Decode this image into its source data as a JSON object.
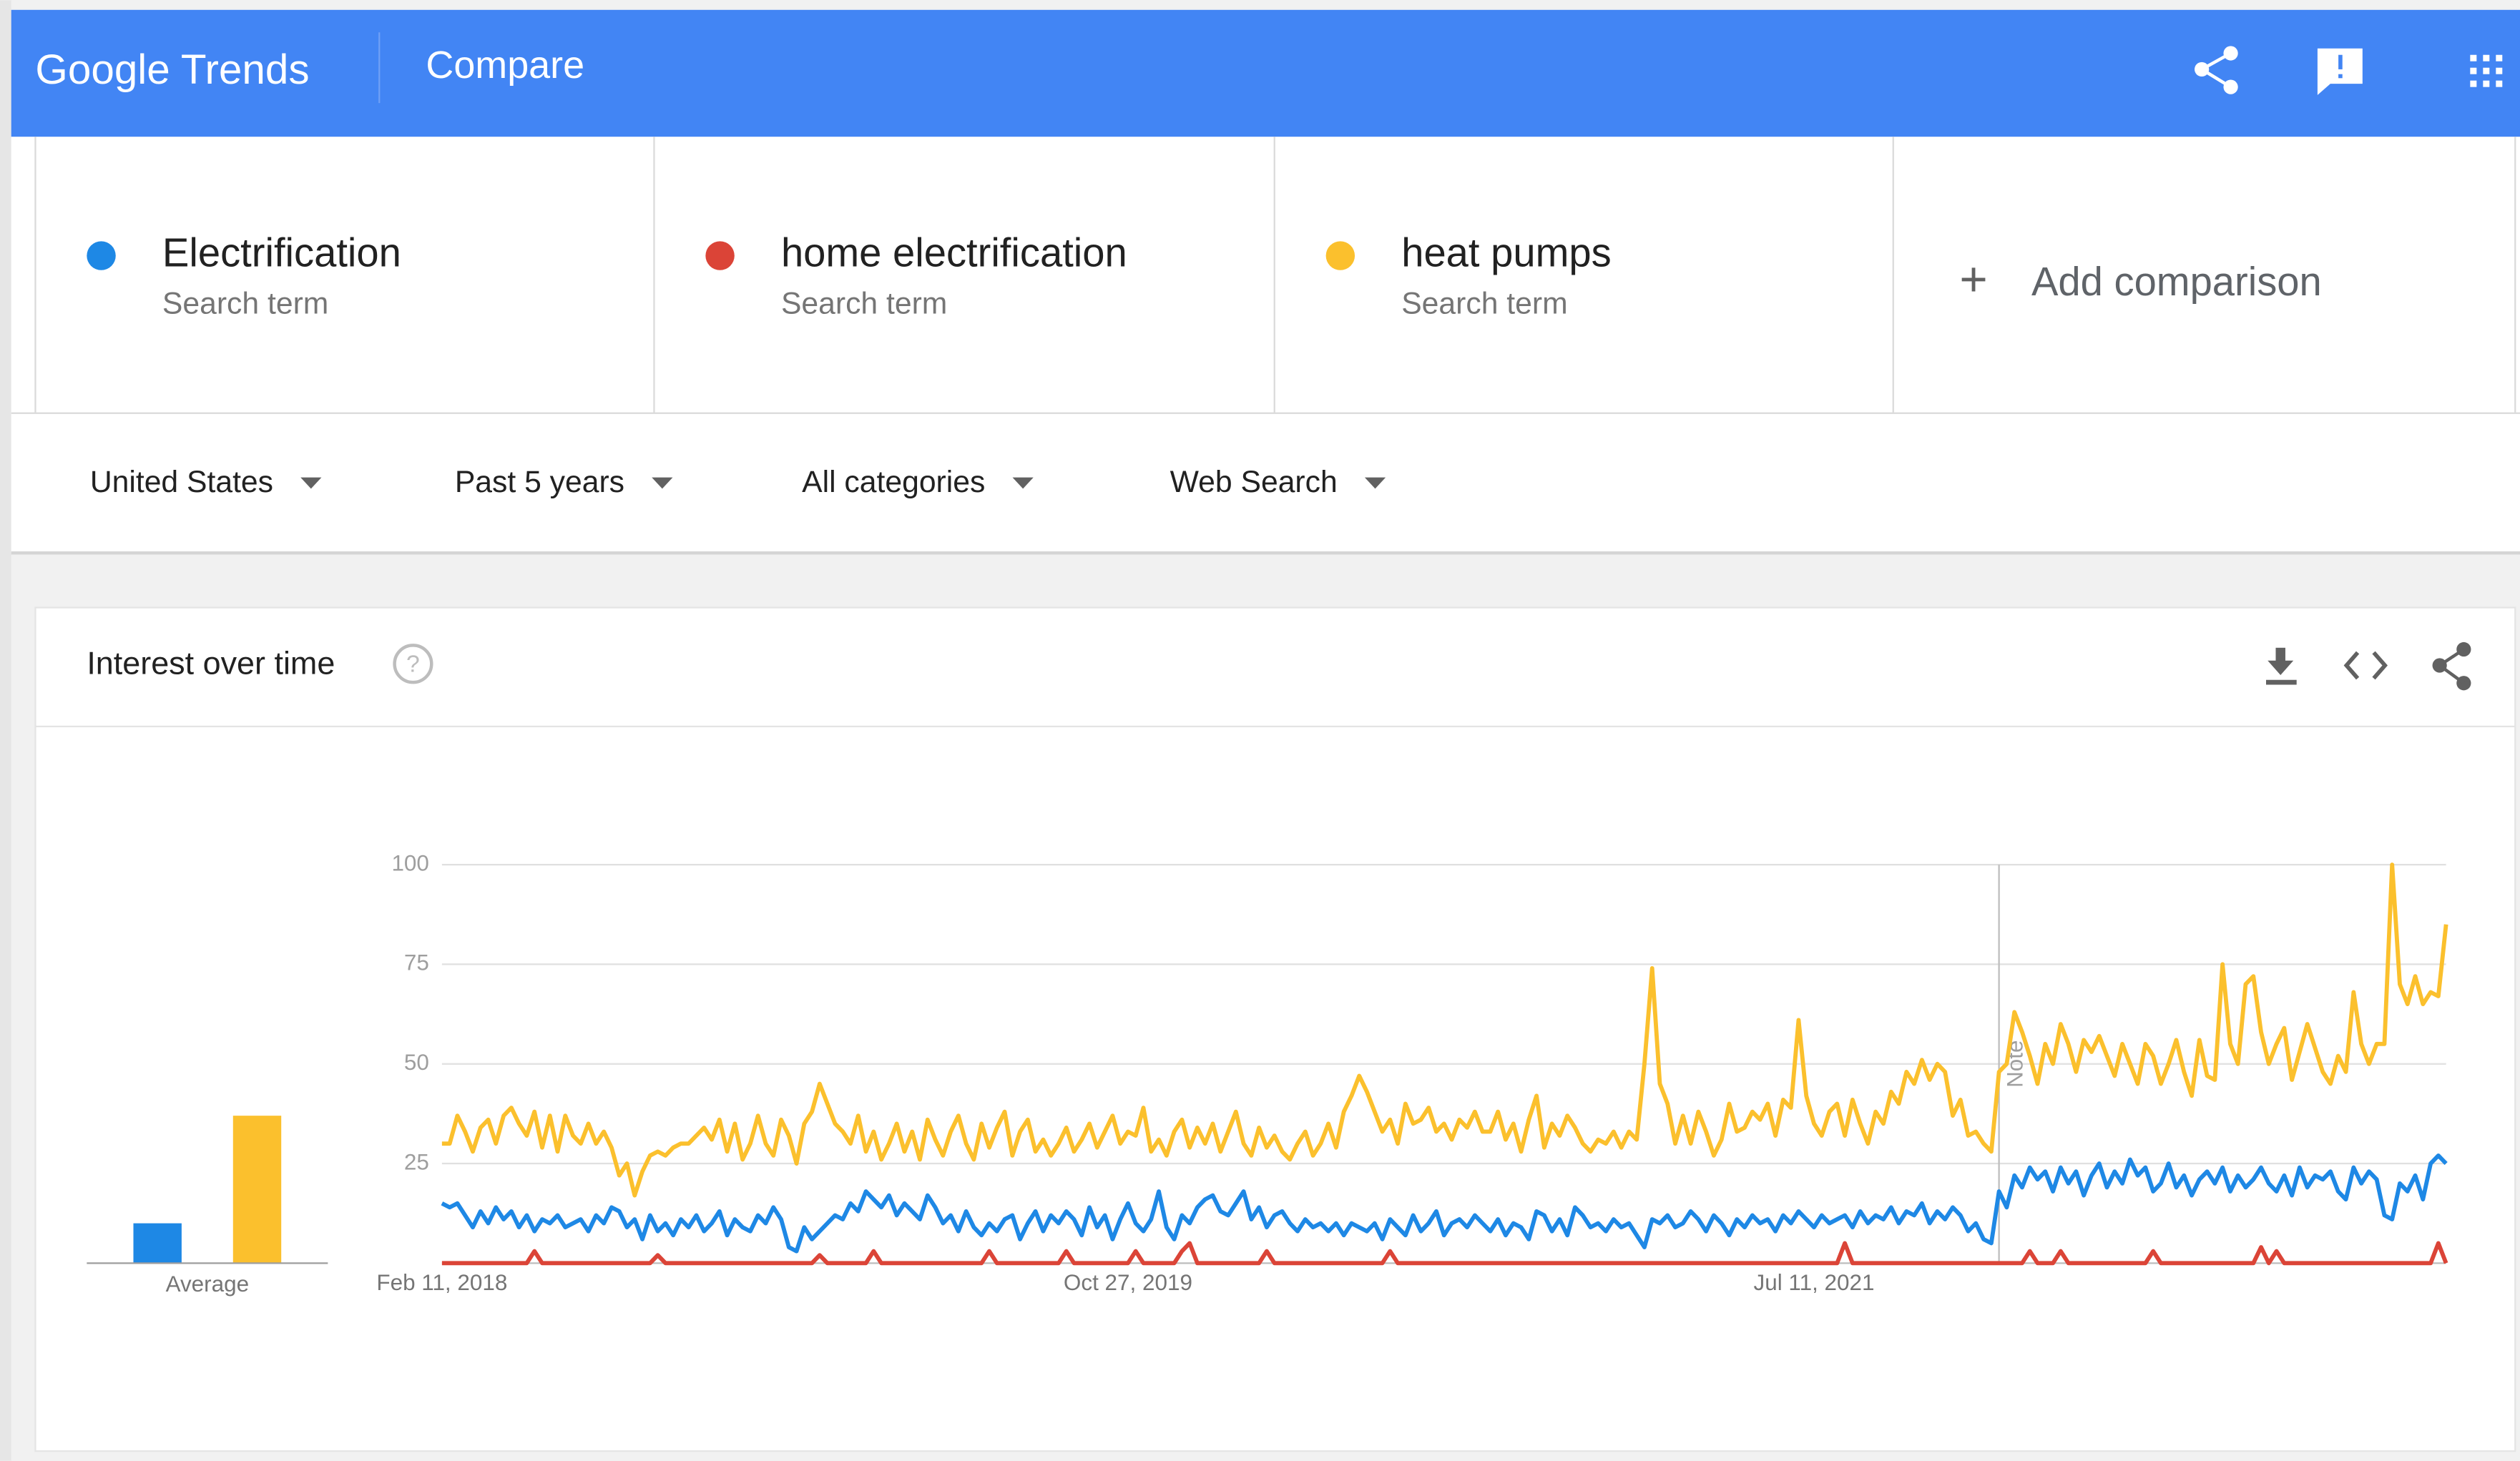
{
  "header": {
    "logo": "Google Trends",
    "title": "Compare"
  },
  "term_subtitles": [
    "Search term",
    "Search term",
    "Search term"
  ],
  "add_comparison": "Add comparison",
  "filters": [
    "United States",
    "Past 5 years",
    "All categories",
    "Web Search"
  ],
  "card_title": "Interest over time",
  "chart_data": {
    "type": "line",
    "average_label": "Average",
    "note": "Note",
    "ylim": [
      0,
      100
    ],
    "yticks": [
      25,
      50,
      75,
      100
    ],
    "grid": true,
    "categories": [
      "Feb 11, 2018",
      null,
      null,
      null,
      null,
      null,
      null,
      null,
      null,
      null,
      null,
      null,
      null,
      null,
      null,
      null,
      null,
      null,
      null,
      null,
      null,
      null,
      null,
      null,
      null,
      null,
      null,
      null,
      null,
      null,
      null,
      null,
      null,
      null,
      null,
      null,
      null,
      null,
      null,
      null,
      null,
      null,
      null,
      null,
      null,
      null,
      null,
      null,
      null,
      null,
      null,
      null,
      null,
      null,
      null,
      null,
      null,
      null,
      null,
      null,
      null,
      null,
      null,
      null,
      null,
      null,
      null,
      null,
      null,
      null,
      null,
      null,
      null,
      null,
      null,
      null,
      null,
      null,
      null,
      null,
      null,
      null,
      null,
      null,
      null,
      null,
      null,
      null,
      null,
      "Oct 27, 2019",
      null,
      null,
      null,
      null,
      null,
      null,
      null,
      null,
      null,
      null,
      null,
      null,
      null,
      null,
      null,
      null,
      null,
      null,
      null,
      null,
      null,
      null,
      null,
      null,
      null,
      null,
      null,
      null,
      null,
      null,
      null,
      null,
      null,
      null,
      null,
      null,
      null,
      null,
      null,
      null,
      null,
      null,
      null,
      null,
      null,
      null,
      null,
      null,
      null,
      null,
      null,
      null,
      null,
      null,
      null,
      null,
      null,
      null,
      null,
      null,
      null,
      null,
      null,
      null,
      null,
      null,
      null,
      null,
      null,
      null,
      null,
      null,
      null,
      null,
      null,
      null,
      null,
      null,
      null,
      null,
      null,
      null,
      null,
      null,
      null,
      null,
      null,
      null,
      "Jul 11, 2021",
      null,
      null,
      null,
      null,
      null,
      null,
      null,
      null,
      null,
      null,
      null,
      null,
      null,
      null,
      null,
      null,
      null,
      null,
      null,
      null,
      null,
      null,
      null,
      null,
      null,
      null,
      null,
      null,
      null,
      null,
      null,
      null,
      null,
      null,
      null,
      null,
      null,
      null,
      null,
      null,
      null,
      null,
      null,
      null,
      null,
      null,
      null,
      null,
      null,
      null,
      null,
      null,
      null,
      null,
      null,
      null,
      null,
      null,
      null,
      null,
      null,
      null,
      null,
      null,
      null,
      null,
      null,
      null,
      null,
      null,
      null,
      null,
      null,
      null,
      null,
      null,
      null,
      null,
      null,
      null,
      null,
      null
    ],
    "series": [
      {
        "name": "Electrification",
        "color": "#1e88e5",
        "average": 10,
        "values": [
          15,
          14,
          15,
          12,
          9,
          13,
          10,
          14,
          11,
          13,
          9,
          12,
          8,
          11,
          10,
          12,
          9,
          10,
          11,
          8,
          12,
          10,
          14,
          13,
          9,
          11,
          6,
          12,
          8,
          10,
          7,
          11,
          9,
          12,
          8,
          10,
          13,
          7,
          11,
          9,
          8,
          12,
          10,
          14,
          11,
          4,
          3,
          9,
          6,
          8,
          10,
          12,
          11,
          15,
          13,
          18,
          16,
          14,
          17,
          12,
          15,
          13,
          11,
          17,
          14,
          10,
          12,
          8,
          13,
          9,
          7,
          10,
          8,
          11,
          12,
          6,
          10,
          13,
          8,
          12,
          10,
          13,
          11,
          7,
          14,
          9,
          12,
          6,
          11,
          15,
          10,
          8,
          11,
          18,
          9,
          6,
          12,
          10,
          14,
          16,
          17,
          13,
          12,
          15,
          18,
          11,
          14,
          9,
          12,
          13,
          10,
          8,
          11,
          9,
          10,
          8,
          10,
          7,
          10,
          9,
          8,
          10,
          6,
          11,
          9,
          7,
          12,
          8,
          10,
          13,
          7,
          10,
          11,
          9,
          12,
          10,
          8,
          11,
          7,
          10,
          9,
          6,
          13,
          12,
          8,
          11,
          7,
          14,
          12,
          9,
          10,
          8,
          11,
          9,
          10,
          7,
          4,
          11,
          10,
          12,
          9,
          10,
          13,
          11,
          8,
          12,
          10,
          7,
          11,
          9,
          12,
          10,
          11,
          8,
          12,
          10,
          13,
          11,
          9,
          12,
          10,
          11,
          12,
          9,
          13,
          10,
          12,
          11,
          14,
          10,
          13,
          12,
          15,
          10,
          13,
          11,
          14,
          12,
          8,
          10,
          6,
          5,
          18,
          14,
          22,
          19,
          24,
          21,
          23,
          18,
          24,
          20,
          23,
          17,
          22,
          25,
          19,
          23,
          20,
          26,
          22,
          24,
          18,
          20,
          25,
          19,
          22,
          17,
          21,
          23,
          20,
          24,
          18,
          22,
          19,
          21,
          24,
          20,
          18,
          22,
          17,
          24,
          19,
          22,
          21,
          23,
          18,
          16,
          24,
          20,
          23,
          21,
          12,
          11,
          20,
          18,
          22,
          16,
          25,
          27,
          25
        ]
      },
      {
        "name": "home electrification",
        "color": "#db4437",
        "average": 0,
        "values": [
          0,
          0,
          0,
          0,
          0,
          0,
          0,
          0,
          0,
          0,
          0,
          0,
          3,
          0,
          0,
          0,
          0,
          0,
          0,
          0,
          0,
          0,
          0,
          0,
          0,
          0,
          0,
          0,
          2,
          0,
          0,
          0,
          0,
          0,
          0,
          0,
          0,
          0,
          0,
          0,
          0,
          0,
          0,
          0,
          0,
          0,
          0,
          0,
          0,
          2,
          0,
          0,
          0,
          0,
          0,
          0,
          3,
          0,
          0,
          0,
          0,
          0,
          0,
          0,
          0,
          0,
          0,
          0,
          0,
          0,
          0,
          3,
          0,
          0,
          0,
          0,
          0,
          0,
          0,
          0,
          0,
          3,
          0,
          0,
          0,
          0,
          0,
          0,
          0,
          0,
          3,
          0,
          0,
          0,
          0,
          0,
          3,
          5,
          0,
          0,
          0,
          0,
          0,
          0,
          0,
          0,
          0,
          3,
          0,
          0,
          0,
          0,
          0,
          0,
          0,
          0,
          0,
          0,
          0,
          0,
          0,
          0,
          0,
          3,
          0,
          0,
          0,
          0,
          0,
          0,
          0,
          0,
          0,
          0,
          0,
          0,
          0,
          0,
          0,
          0,
          0,
          0,
          0,
          0,
          0,
          0,
          0,
          0,
          0,
          0,
          0,
          0,
          0,
          0,
          0,
          0,
          0,
          0,
          0,
          0,
          0,
          0,
          0,
          0,
          0,
          0,
          0,
          0,
          0,
          0,
          0,
          0,
          0,
          0,
          0,
          0,
          0,
          0,
          0,
          0,
          0,
          0,
          5,
          0,
          0,
          0,
          0,
          0,
          0,
          0,
          0,
          0,
          0,
          0,
          0,
          0,
          0,
          0,
          0,
          0,
          0,
          0,
          0,
          0,
          0,
          0,
          3,
          0,
          0,
          0,
          3,
          0,
          0,
          0,
          0,
          0,
          0,
          0,
          0,
          0,
          0,
          0,
          3,
          0,
          0,
          0,
          0,
          0,
          0,
          0,
          0,
          0,
          0,
          0,
          0,
          0,
          4,
          0,
          3,
          0,
          0,
          0,
          0,
          0,
          0,
          0,
          0,
          0,
          0,
          0,
          0,
          0,
          0,
          0,
          0,
          0,
          0,
          0,
          0,
          5,
          0
        ]
      },
      {
        "name": "heat pumps",
        "color": "#fbc02d",
        "average": 37,
        "values": [
          30,
          30,
          37,
          33,
          28,
          34,
          36,
          30,
          37,
          39,
          35,
          32,
          38,
          29,
          37,
          28,
          37,
          32,
          30,
          35,
          30,
          33,
          29,
          22,
          25,
          17,
          23,
          27,
          28,
          27,
          29,
          30,
          30,
          32,
          34,
          31,
          36,
          28,
          35,
          26,
          30,
          37,
          30,
          27,
          36,
          32,
          25,
          35,
          38,
          45,
          40,
          35,
          33,
          30,
          37,
          28,
          33,
          26,
          30,
          35,
          28,
          33,
          26,
          36,
          31,
          27,
          33,
          37,
          30,
          26,
          35,
          29,
          34,
          38,
          27,
          33,
          36,
          28,
          31,
          27,
          30,
          34,
          28,
          31,
          35,
          29,
          33,
          37,
          30,
          33,
          32,
          39,
          28,
          31,
          27,
          33,
          36,
          29,
          34,
          30,
          35,
          28,
          33,
          38,
          30,
          27,
          34,
          29,
          32,
          28,
          26,
          30,
          33,
          27,
          30,
          35,
          29,
          38,
          42,
          47,
          43,
          38,
          33,
          36,
          30,
          40,
          35,
          36,
          39,
          33,
          35,
          31,
          36,
          34,
          38,
          33,
          33,
          38,
          31,
          35,
          28,
          36,
          42,
          29,
          35,
          32,
          37,
          34,
          30,
          28,
          31,
          30,
          33,
          29,
          33,
          31,
          50,
          74,
          45,
          40,
          30,
          37,
          30,
          38,
          33,
          27,
          31,
          40,
          33,
          34,
          38,
          36,
          40,
          32,
          41,
          39,
          61,
          42,
          35,
          32,
          38,
          40,
          32,
          41,
          35,
          30,
          38,
          35,
          43,
          40,
          48,
          45,
          51,
          46,
          50,
          48,
          37,
          41,
          32,
          33,
          30,
          28,
          48,
          50,
          63,
          58,
          52,
          45,
          55,
          50,
          60,
          55,
          48,
          56,
          53,
          57,
          52,
          47,
          55,
          50,
          45,
          55,
          52,
          45,
          50,
          56,
          48,
          42,
          56,
          47,
          46,
          75,
          55,
          50,
          70,
          72,
          58,
          50,
          55,
          59,
          46,
          53,
          60,
          54,
          48,
          45,
          52,
          48,
          68,
          55,
          50,
          55,
          55,
          100,
          70,
          65,
          72,
          65,
          68,
          67,
          85
        ]
      }
    ]
  }
}
